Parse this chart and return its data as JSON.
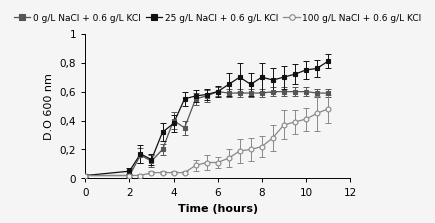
{
  "series": [
    {
      "label": "0 g/L NaCl + 0.6 g/L KCl",
      "x": [
        0,
        2,
        2.5,
        3,
        3.5,
        4,
        4.5,
        5,
        5.5,
        6,
        6.5,
        7,
        7.5,
        8,
        8.5,
        9,
        9.5,
        10,
        10.5,
        11
      ],
      "y": [
        0.02,
        0.02,
        0.16,
        0.12,
        0.2,
        0.4,
        0.35,
        0.55,
        0.57,
        0.6,
        0.59,
        0.59,
        0.59,
        0.59,
        0.6,
        0.6,
        0.6,
        0.6,
        0.59,
        0.59
      ],
      "yerr": [
        0.01,
        0.01,
        0.05,
        0.04,
        0.04,
        0.06,
        0.05,
        0.04,
        0.04,
        0.03,
        0.03,
        0.03,
        0.03,
        0.03,
        0.03,
        0.03,
        0.03,
        0.03,
        0.03,
        0.03
      ],
      "marker": "s",
      "color": "#555555",
      "linestyle": "-"
    },
    {
      "label": "25 g/L NaCl + 0.6 g/L KCl",
      "x": [
        0,
        2,
        2.5,
        3,
        3.5,
        4,
        4.5,
        5,
        5.5,
        6,
        6.5,
        7,
        7.5,
        8,
        8.5,
        9,
        9.5,
        10,
        10.5,
        11
      ],
      "y": [
        0.02,
        0.05,
        0.17,
        0.13,
        0.32,
        0.38,
        0.55,
        0.57,
        0.58,
        0.6,
        0.65,
        0.7,
        0.65,
        0.7,
        0.68,
        0.7,
        0.72,
        0.75,
        0.76,
        0.81
      ],
      "yerr": [
        0.01,
        0.02,
        0.06,
        0.04,
        0.06,
        0.06,
        0.05,
        0.04,
        0.04,
        0.04,
        0.08,
        0.1,
        0.08,
        0.1,
        0.08,
        0.08,
        0.07,
        0.06,
        0.06,
        0.05
      ],
      "marker": "s",
      "color": "#111111",
      "linestyle": "-"
    },
    {
      "label": "100 g/L NaCl + 0.6 g/L KCl",
      "x": [
        0,
        2,
        2.5,
        3,
        3.5,
        4,
        4.5,
        5,
        5.5,
        6,
        6.5,
        7,
        7.5,
        8,
        8.5,
        9,
        9.5,
        10,
        10.5,
        11
      ],
      "y": [
        0.02,
        0.02,
        0.02,
        0.04,
        0.04,
        0.04,
        0.04,
        0.09,
        0.11,
        0.11,
        0.14,
        0.19,
        0.2,
        0.22,
        0.28,
        0.37,
        0.39,
        0.41,
        0.45,
        0.48
      ],
      "yerr": [
        0.01,
        0.01,
        0.01,
        0.01,
        0.01,
        0.01,
        0.01,
        0.04,
        0.05,
        0.04,
        0.06,
        0.08,
        0.08,
        0.07,
        0.09,
        0.1,
        0.08,
        0.08,
        0.12,
        0.1
      ],
      "marker": "o",
      "color": "#888888",
      "linestyle": "-"
    }
  ],
  "xlabel": "Time (hours)",
  "ylabel": "D.O 600 nm",
  "xlim": [
    0,
    12
  ],
  "ylim": [
    0,
    1
  ],
  "yticks": [
    0,
    0.2,
    0.4,
    0.6,
    0.8,
    1
  ],
  "ytick_labels": [
    "0",
    "0,2",
    "0,4",
    "0,6",
    "0,8",
    "1"
  ],
  "xticks": [
    0,
    2,
    4,
    6,
    8,
    10,
    12
  ],
  "background_color": "#f5f5f5",
  "legend_fontsize": 6.5,
  "axis_fontsize": 8,
  "tick_fontsize": 7.5
}
